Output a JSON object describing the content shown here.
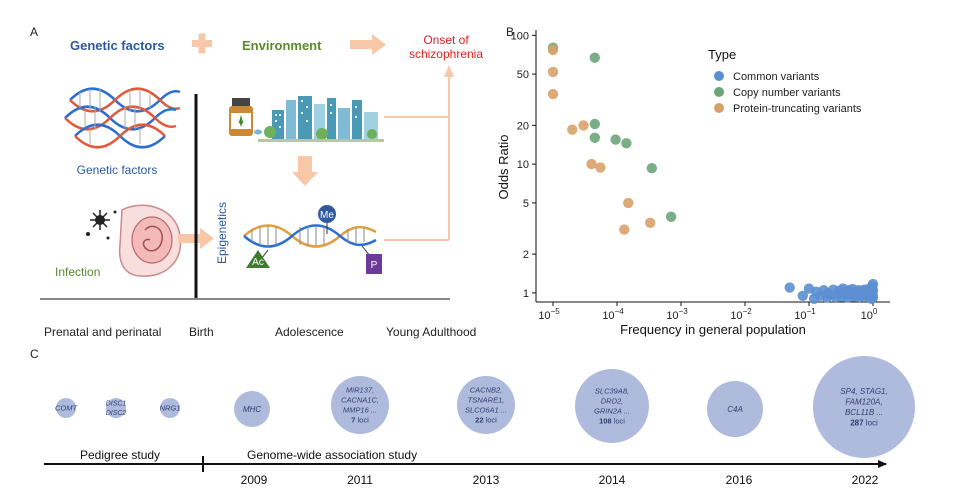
{
  "colors": {
    "common": "#5b8fd0",
    "cnv": "#6aa57a",
    "ptv": "#d9a16a",
    "arrow": "#f6c8a8",
    "onset": "#e02020",
    "genetic_title": "#2c5a9c",
    "environment": "#5a8a2e",
    "bubble": "#aebbdc",
    "bubble_text": "#2f3e70"
  },
  "panel_a": {
    "label": "A",
    "genetic_factors_title": "Genetic factors",
    "environment_title": "Environment",
    "onset_line1": "Onset of",
    "onset_line2": "schizophrenia",
    "genetic_factors_caption": "Genetic factors",
    "infection_caption": "Infection",
    "epigenetics_label": "Epigenetics",
    "me_label": "Me",
    "ac_label": "Ac",
    "p_label": "P",
    "stages": [
      "Prenatal and perinatal",
      "Birth",
      "Adolescence",
      "Young Adulthood"
    ]
  },
  "panel_b": {
    "label": "B"
  },
  "chart_data": {
    "type": "scatter",
    "title": "",
    "xlabel": "Frequency in general population",
    "ylabel": "Odds Ratio",
    "x_scale": "log10",
    "y_scale": "log10",
    "xlim": [
      1e-05,
      1
    ],
    "ylim": [
      0.85,
      110
    ],
    "x_ticks": [
      1e-05,
      0.0001,
      0.001,
      0.01,
      0.1,
      1
    ],
    "x_tick_labels": [
      [
        "10",
        "−5"
      ],
      [
        "10",
        "−4"
      ],
      [
        "10",
        "−3"
      ],
      [
        "10",
        "−2"
      ],
      [
        "10",
        "−1"
      ],
      [
        "10",
        "0"
      ]
    ],
    "y_ticks": [
      1,
      2,
      5,
      10,
      20,
      50,
      100
    ],
    "y_tick_labels": [
      "1",
      "2",
      "5",
      "10",
      "20",
      "50",
      "100"
    ],
    "legend_title": "Type",
    "legend_position": "top-right",
    "series": [
      {
        "name": "Common variants",
        "color_key": "common",
        "points": [
          [
            0.05,
            1.1
          ],
          [
            0.08,
            0.95
          ],
          [
            0.1,
            1.08
          ],
          [
            0.12,
            0.9
          ],
          [
            0.13,
            1.02
          ],
          [
            0.15,
            0.95
          ],
          [
            0.17,
            1.05
          ],
          [
            0.19,
            0.92
          ],
          [
            0.2,
            1.0
          ],
          [
            0.22,
            0.96
          ],
          [
            0.24,
            1.06
          ],
          [
            0.26,
            0.93
          ],
          [
            0.28,
            1.0
          ],
          [
            0.3,
            1.04
          ],
          [
            0.32,
            0.94
          ],
          [
            0.34,
            1.08
          ],
          [
            0.36,
            0.97
          ],
          [
            0.38,
            1.02
          ],
          [
            0.4,
            0.92
          ],
          [
            0.42,
            1.05
          ],
          [
            0.45,
            0.98
          ],
          [
            0.48,
            1.07
          ],
          [
            0.5,
            0.94
          ],
          [
            0.53,
            1.02
          ],
          [
            0.56,
            0.96
          ],
          [
            0.59,
            1.05
          ],
          [
            0.62,
            0.93
          ],
          [
            0.65,
            1.0
          ],
          [
            0.68,
            1.04
          ],
          [
            0.7,
            0.95
          ],
          [
            0.73,
            1.06
          ],
          [
            0.76,
            0.97
          ],
          [
            0.8,
            1.02
          ],
          [
            0.84,
            0.93
          ],
          [
            0.88,
            1.08
          ],
          [
            0.9,
            0.99
          ],
          [
            0.93,
            1.04
          ],
          [
            0.95,
            0.9
          ],
          [
            0.97,
            1.12
          ],
          [
            0.98,
            1.0
          ],
          [
            0.99,
            0.95
          ],
          [
            1.0,
            1.05
          ],
          [
            1.0,
            1.17
          ],
          [
            1.0,
            0.92
          ]
        ]
      },
      {
        "name": "Copy number variants",
        "color_key": "cnv",
        "points": [
          [
            1e-05,
            80
          ],
          [
            4.5e-05,
            67
          ],
          [
            4.5e-05,
            20.5
          ],
          [
            4.5e-05,
            16
          ],
          [
            9.5e-05,
            15.5
          ],
          [
            0.00014,
            14.5
          ],
          [
            0.00035,
            9.3
          ],
          [
            0.0007,
            3.9
          ]
        ]
      },
      {
        "name": "Protein-truncating variants",
        "color_key": "ptv",
        "points": [
          [
            1e-05,
            77
          ],
          [
            1e-05,
            52
          ],
          [
            1e-05,
            35
          ],
          [
            2e-05,
            18.5
          ],
          [
            3e-05,
            20
          ],
          [
            4e-05,
            10
          ],
          [
            5.5e-05,
            9.4
          ],
          [
            0.00015,
            5
          ],
          [
            0.00013,
            3.1
          ],
          [
            0.00033,
            3.5
          ]
        ]
      }
    ]
  },
  "panel_c": {
    "label": "C",
    "pedigree_label": "Pedigree study",
    "gwas_label": "Genome-wide association study",
    "years": [
      "2009",
      "2011",
      "2013",
      "2014",
      "2016",
      "2022"
    ],
    "bubbles": [
      {
        "lines": [
          "COMT"
        ],
        "loci": ""
      },
      {
        "lines": [
          "DISC1",
          "DISC2"
        ],
        "loci": ""
      },
      {
        "lines": [
          "NRG1"
        ],
        "loci": ""
      },
      {
        "lines": [
          "MHC"
        ],
        "loci": ""
      },
      {
        "lines": [
          "MIR137,",
          "CACNA1C,",
          "MMP16 ..."
        ],
        "loci": "7 loci"
      },
      {
        "lines": [
          "CACNB2,",
          "TSNARE1,",
          "SLCO6A1 ..."
        ],
        "loci": "22 loci"
      },
      {
        "lines": [
          "SLC39A8,",
          "DRD2,",
          "GRIN2A ..."
        ],
        "loci": "108 loci"
      },
      {
        "lines": [
          "C4A"
        ],
        "loci": ""
      },
      {
        "lines": [
          "SP4, STAG1,",
          "FAM120A,",
          "BCL11B ..."
        ],
        "loci": "287 loci"
      }
    ]
  }
}
